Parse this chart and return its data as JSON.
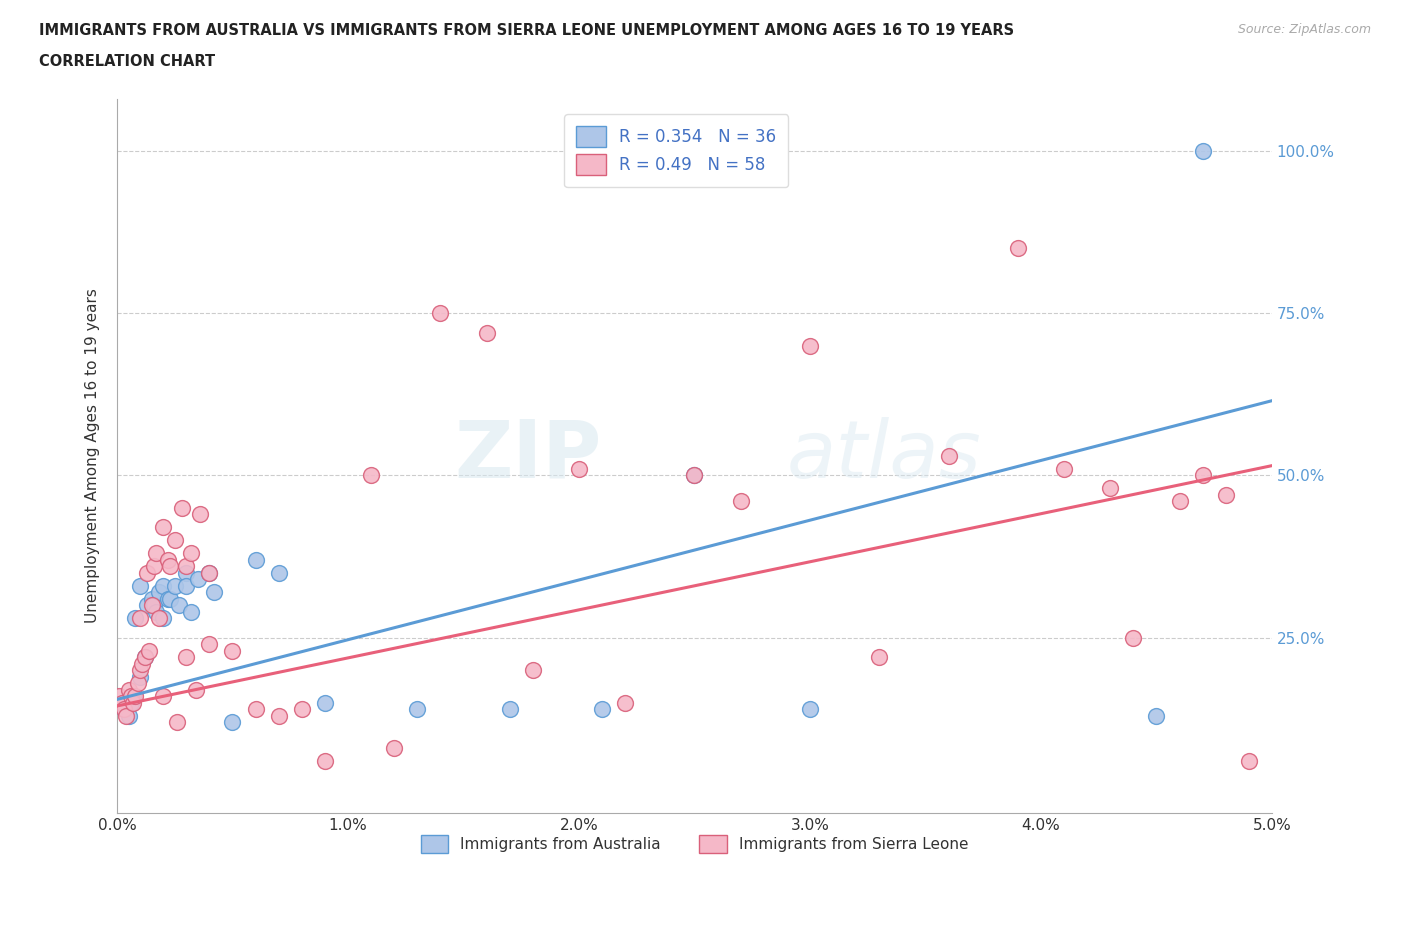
{
  "title_line1": "IMMIGRANTS FROM AUSTRALIA VS IMMIGRANTS FROM SIERRA LEONE UNEMPLOYMENT AMONG AGES 16 TO 19 YEARS",
  "title_line2": "CORRELATION CHART",
  "source": "Source: ZipAtlas.com",
  "ylabel": "Unemployment Among Ages 16 to 19 years",
  "xlim": [
    0.0,
    0.05
  ],
  "ylim": [
    -0.02,
    1.08
  ],
  "xticks": [
    0.0,
    0.01,
    0.02,
    0.03,
    0.04,
    0.05
  ],
  "xticklabels": [
    "0.0%",
    "1.0%",
    "2.0%",
    "3.0%",
    "4.0%",
    "5.0%"
  ],
  "yticks": [
    0.25,
    0.5,
    0.75,
    1.0
  ],
  "yticklabels": [
    "25.0%",
    "50.0%",
    "75.0%",
    "100.0%"
  ],
  "color_australia": "#aec6e8",
  "color_sierra_leone": "#f5b8c8",
  "color_line_australia": "#5b9bd5",
  "color_line_sierra_leone": "#e8607a",
  "R_australia": 0.354,
  "N_australia": 36,
  "R_sierra_leone": 0.49,
  "N_sierra_leone": 58,
  "legend_label_australia": "Immigrants from Australia",
  "legend_label_sierra_leone": "Immigrants from Sierra Leone",
  "watermark_zip": "ZIP",
  "watermark_atlas": "atlas",
  "bg_color": "#ffffff",
  "grid_color": "#cccccc",
  "aus_line_y0": 0.155,
  "aus_line_y1": 0.615,
  "sl_line_y0": 0.145,
  "sl_line_y1": 0.515,
  "australia_x": [
    0.0003,
    0.0005,
    0.0006,
    0.0007,
    0.0008,
    0.001,
    0.001,
    0.0012,
    0.0013,
    0.0015,
    0.0016,
    0.0017,
    0.0018,
    0.002,
    0.002,
    0.0022,
    0.0023,
    0.0025,
    0.0027,
    0.003,
    0.003,
    0.0032,
    0.0035,
    0.004,
    0.0042,
    0.005,
    0.006,
    0.007,
    0.009,
    0.013,
    0.017,
    0.021,
    0.025,
    0.03,
    0.045,
    0.047
  ],
  "australia_y": [
    0.14,
    0.13,
    0.15,
    0.16,
    0.28,
    0.19,
    0.33,
    0.22,
    0.3,
    0.31,
    0.3,
    0.29,
    0.32,
    0.28,
    0.33,
    0.31,
    0.31,
    0.33,
    0.3,
    0.35,
    0.33,
    0.29,
    0.34,
    0.35,
    0.32,
    0.12,
    0.37,
    0.35,
    0.15,
    0.14,
    0.14,
    0.14,
    0.5,
    0.14,
    0.13,
    1.0
  ],
  "sierra_leone_x": [
    0.0001,
    0.0002,
    0.0003,
    0.0004,
    0.0005,
    0.0006,
    0.0007,
    0.0008,
    0.0009,
    0.001,
    0.001,
    0.0011,
    0.0012,
    0.0013,
    0.0014,
    0.0015,
    0.0016,
    0.0017,
    0.0018,
    0.002,
    0.002,
    0.0022,
    0.0023,
    0.0025,
    0.0026,
    0.0028,
    0.003,
    0.003,
    0.0032,
    0.0034,
    0.0036,
    0.004,
    0.004,
    0.005,
    0.006,
    0.007,
    0.008,
    0.009,
    0.011,
    0.012,
    0.014,
    0.016,
    0.018,
    0.02,
    0.022,
    0.025,
    0.027,
    0.03,
    0.033,
    0.036,
    0.039,
    0.041,
    0.043,
    0.044,
    0.046,
    0.047,
    0.048,
    0.049
  ],
  "sierra_leone_y": [
    0.16,
    0.15,
    0.14,
    0.13,
    0.17,
    0.16,
    0.15,
    0.16,
    0.18,
    0.2,
    0.28,
    0.21,
    0.22,
    0.35,
    0.23,
    0.3,
    0.36,
    0.38,
    0.28,
    0.42,
    0.16,
    0.37,
    0.36,
    0.4,
    0.12,
    0.45,
    0.36,
    0.22,
    0.38,
    0.17,
    0.44,
    0.35,
    0.24,
    0.23,
    0.14,
    0.13,
    0.14,
    0.06,
    0.5,
    0.08,
    0.75,
    0.72,
    0.2,
    0.51,
    0.15,
    0.5,
    0.46,
    0.7,
    0.22,
    0.53,
    0.85,
    0.51,
    0.48,
    0.25,
    0.46,
    0.5,
    0.47,
    0.06
  ]
}
